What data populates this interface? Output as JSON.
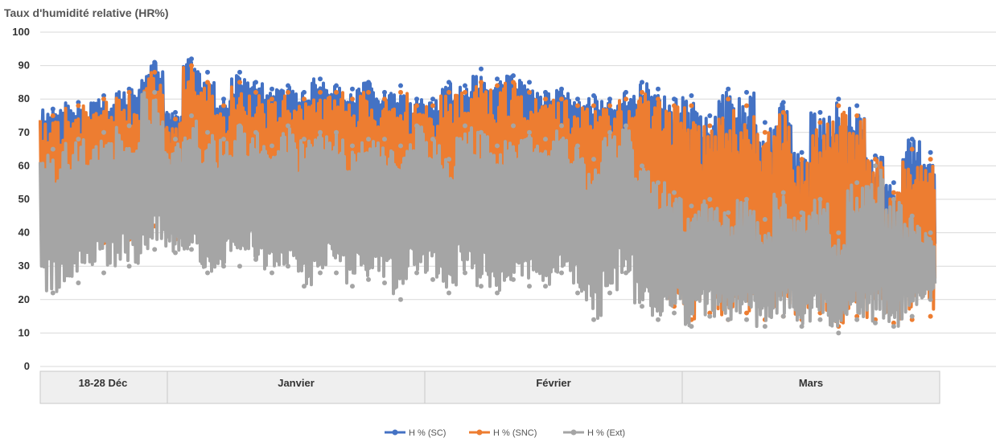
{
  "chart_data": {
    "type": "line",
    "ylabel": "Taux d'humidité relative (HR%)",
    "ylim": [
      0,
      100
    ],
    "yticks": [
      0,
      10,
      20,
      30,
      40,
      50,
      60,
      70,
      80,
      90,
      100
    ],
    "grid": "horizontal",
    "legend_position": "bottom",
    "categories": [
      "18-28 Déc",
      "Janvier",
      "Février",
      "Mars"
    ],
    "series": [
      {
        "name": "H % (SC)",
        "color": "#4472C4",
        "points_per_category": [
          5,
          16,
          16,
          14
        ],
        "upper": [
          77,
          79,
          81,
          83,
          91,
          76,
          92,
          88,
          80,
          88,
          85,
          83,
          84,
          82,
          86,
          84,
          83,
          85,
          82,
          84,
          80,
          80,
          85,
          84,
          89,
          86,
          87,
          85,
          82,
          83,
          80,
          81,
          80,
          82,
          85,
          83,
          80,
          81,
          75,
          83,
          82,
          73,
          79,
          64,
          76,
          80,
          78,
          63,
          55,
          68,
          64
        ],
        "lower": [
          60,
          55,
          58,
          62,
          65,
          62,
          60,
          56,
          60,
          58,
          62,
          55,
          60,
          55,
          60,
          58,
          55,
          55,
          56,
          52,
          58,
          55,
          50,
          60,
          55,
          52,
          58,
          55,
          55,
          60,
          55,
          50,
          58,
          60,
          45,
          40,
          42,
          35,
          40,
          38,
          40,
          35,
          42,
          38,
          40,
          30,
          42,
          35,
          30,
          30,
          28
        ]
      },
      {
        "name": "H % (SNC)",
        "color": "#ED7D31",
        "points_per_category": [
          5,
          16,
          16,
          14
        ],
        "upper": [
          75,
          78,
          80,
          82,
          88,
          74,
          90,
          85,
          78,
          85,
          82,
          80,
          82,
          80,
          82,
          82,
          80,
          82,
          80,
          82,
          78,
          78,
          82,
          82,
          85,
          84,
          85,
          82,
          80,
          80,
          78,
          78,
          78,
          80,
          82,
          80,
          78,
          78,
          72,
          80,
          78,
          70,
          76,
          62,
          73,
          78,
          75,
          62,
          52,
          65,
          62
        ],
        "lower": [
          33,
          35,
          37,
          38,
          42,
          38,
          40,
          36,
          38,
          38,
          40,
          35,
          38,
          36,
          40,
          38,
          35,
          36,
          36,
          34,
          38,
          36,
          33,
          38,
          35,
          34,
          36,
          35,
          36,
          38,
          35,
          33,
          35,
          38,
          25,
          20,
          18,
          14,
          16,
          14,
          16,
          14,
          15,
          14,
          16,
          12,
          15,
          14,
          13,
          14,
          15
        ]
      },
      {
        "name": "H % (Ext)",
        "color": "#A5A5A5",
        "points_per_category": [
          5,
          16,
          16,
          14
        ],
        "upper": [
          65,
          68,
          70,
          72,
          82,
          68,
          75,
          70,
          68,
          72,
          70,
          66,
          72,
          68,
          70,
          70,
          66,
          68,
          68,
          66,
          72,
          68,
          62,
          72,
          70,
          66,
          72,
          70,
          68,
          72,
          66,
          62,
          70,
          72,
          60,
          55,
          52,
          48,
          50,
          46,
          50,
          44,
          52,
          46,
          50,
          40,
          55,
          60,
          50,
          45,
          40
        ],
        "lower": [
          22,
          25,
          28,
          30,
          35,
          34,
          35,
          28,
          30,
          30,
          32,
          28,
          30,
          24,
          28,
          28,
          24,
          26,
          25,
          20,
          28,
          26,
          22,
          28,
          24,
          22,
          26,
          24,
          24,
          28,
          22,
          14,
          22,
          28,
          18,
          14,
          16,
          12,
          15,
          14,
          14,
          12,
          15,
          12,
          14,
          10,
          14,
          13,
          12,
          15,
          20
        ]
      }
    ]
  }
}
